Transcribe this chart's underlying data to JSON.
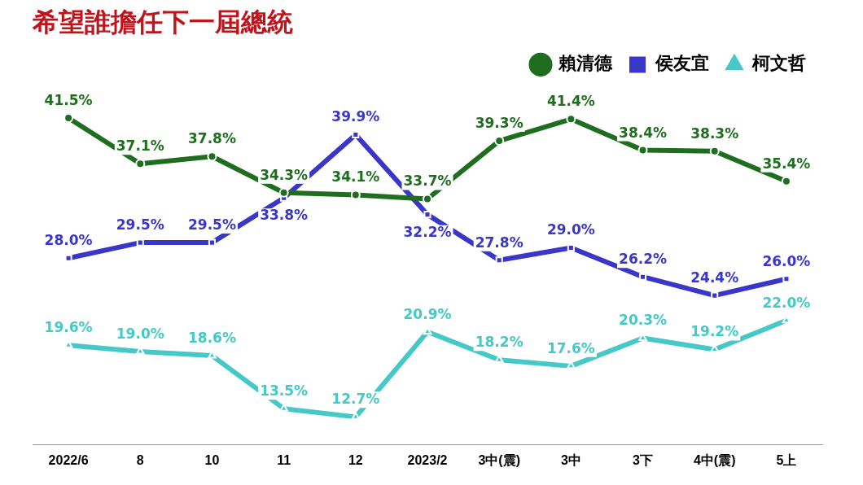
{
  "chart_data": {
    "type": "line",
    "title": "希望誰擔任下一屆總統",
    "categories": [
      "2022/6",
      "8",
      "10",
      "11",
      "12",
      "2023/2",
      "3中(震)",
      "3中",
      "3下",
      "4中(震)",
      "5上"
    ],
    "series": [
      {
        "name": "賴清德",
        "color": "#1f6e1f",
        "marker": "circle",
        "values": [
          41.5,
          37.1,
          37.8,
          34.3,
          34.1,
          33.7,
          39.3,
          41.4,
          38.4,
          38.3,
          35.4
        ],
        "value_labels": [
          "41.5%",
          "37.1%",
          "37.8%",
          "34.3%",
          "34.1%",
          "33.7%",
          "39.3%",
          "41.4%",
          "38.4%",
          "38.3%",
          "35.4%"
        ]
      },
      {
        "name": "侯友宜",
        "color": "#3a36c8",
        "marker": "square",
        "values": [
          28.0,
          29.5,
          29.5,
          33.8,
          39.9,
          32.2,
          27.8,
          29.0,
          26.2,
          24.4,
          26.0
        ],
        "value_labels": [
          "28.0%",
          "29.5%",
          "29.5%",
          "33.8%",
          "39.9%",
          "32.2%",
          "27.8%",
          "29.0%",
          "26.2%",
          "24.4%",
          "26.0%"
        ]
      },
      {
        "name": "柯文哲",
        "color": "#45c8c8",
        "marker": "triangle",
        "values": [
          19.6,
          19.0,
          18.6,
          13.5,
          12.7,
          20.9,
          18.2,
          17.6,
          20.3,
          19.2,
          22.0
        ],
        "value_labels": [
          "19.6%",
          "19.0%",
          "18.6%",
          "13.5%",
          "12.7%",
          "20.9%",
          "18.2%",
          "17.6%",
          "20.3%",
          "19.2%",
          "22.0%"
        ]
      }
    ],
    "legend": "top right",
    "grid": false,
    "tick_labels": "x",
    "line_style": "solid"
  }
}
